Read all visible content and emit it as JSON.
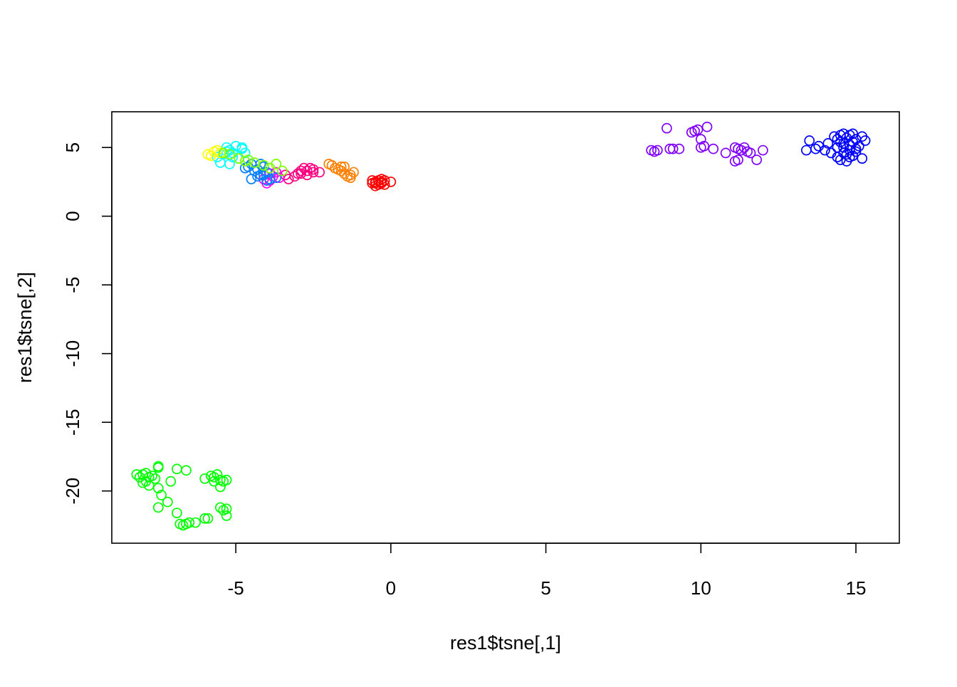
{
  "chart_data": {
    "type": "scatter",
    "title": "",
    "xlabel": "res1$tsne[,1]",
    "ylabel": "res1$tsne[,2]",
    "xlim": [
      -9.0,
      16.4
    ],
    "ylim": [
      -23.8,
      7.6
    ],
    "xticks": [
      -5,
      0,
      5,
      10,
      15
    ],
    "yticks": [
      -20,
      -15,
      -10,
      -5,
      0,
      5
    ],
    "grid": false,
    "legend": "none",
    "marker": "open-circle",
    "series": [
      {
        "color": "#FF0000",
        "points": [
          [
            -0.5,
            2.5
          ],
          [
            -0.3,
            2.4
          ],
          [
            -0.6,
            2.6
          ],
          [
            -0.4,
            2.3
          ],
          [
            -0.2,
            2.6
          ],
          [
            -0.5,
            2.4
          ],
          [
            -0.3,
            2.5
          ],
          [
            0.0,
            2.5
          ],
          [
            -0.6,
            2.4
          ],
          [
            -0.4,
            2.6
          ],
          [
            -0.2,
            2.3
          ],
          [
            -0.5,
            2.2
          ],
          [
            -0.3,
            2.7
          ]
        ]
      },
      {
        "color": "#FF8000",
        "points": [
          [
            -2.0,
            3.8
          ],
          [
            -1.8,
            3.5
          ],
          [
            -1.6,
            3.3
          ],
          [
            -1.5,
            3.6
          ],
          [
            -1.3,
            3.0
          ],
          [
            -1.2,
            3.2
          ],
          [
            -1.4,
            2.9
          ],
          [
            -1.7,
            3.4
          ],
          [
            -1.9,
            3.7
          ],
          [
            -1.5,
            3.1
          ],
          [
            -1.3,
            2.8
          ],
          [
            -1.6,
            3.6
          ]
        ]
      },
      {
        "color": "#FF0080",
        "points": [
          [
            -3.3,
            2.7
          ],
          [
            -3.1,
            2.9
          ],
          [
            -2.9,
            3.1
          ],
          [
            -2.7,
            3.3
          ],
          [
            -2.5,
            3.2
          ],
          [
            -2.3,
            3.2
          ],
          [
            -2.6,
            3.5
          ],
          [
            -2.8,
            3.5
          ],
          [
            -2.7,
            3.0
          ],
          [
            -2.9,
            3.3
          ],
          [
            -3.4,
            3.0
          ],
          [
            -3.0,
            3.1
          ],
          [
            -2.5,
            3.4
          ]
        ]
      },
      {
        "color": "#FF00FF",
        "points": [
          [
            -4.0,
            2.4
          ],
          [
            -3.8,
            2.9
          ],
          [
            -3.9,
            3.1
          ],
          [
            -3.6,
            2.8
          ],
          [
            -4.1,
            2.7
          ],
          [
            -3.7,
            3.2
          ],
          [
            -3.9,
            2.6
          ]
        ]
      },
      {
        "color": "#0080FF",
        "points": [
          [
            -4.6,
            3.6
          ],
          [
            -4.3,
            3.4
          ],
          [
            -4.2,
            3.0
          ],
          [
            -4.5,
            3.8
          ],
          [
            -4.0,
            3.2
          ],
          [
            -4.4,
            3.3
          ],
          [
            -4.1,
            3.6
          ],
          [
            -4.3,
            2.9
          ],
          [
            -4.5,
            2.7
          ],
          [
            -3.9,
            2.7
          ],
          [
            -4.7,
            3.5
          ],
          [
            -4.2,
            3.8
          ],
          [
            -3.7,
            2.8
          ],
          [
            -4.0,
            2.6
          ],
          [
            -4.1,
            3.0
          ]
        ]
      },
      {
        "color": "#00FFFF",
        "points": [
          [
            -5.6,
            4.3
          ],
          [
            -5.4,
            4.5
          ],
          [
            -5.3,
            5.0
          ],
          [
            -5.2,
            4.8
          ],
          [
            -5.0,
            5.1
          ],
          [
            -4.8,
            4.9
          ],
          [
            -4.7,
            4.6
          ],
          [
            -4.6,
            4.1
          ],
          [
            -5.1,
            4.3
          ],
          [
            -5.5,
            3.9
          ],
          [
            -5.2,
            3.8
          ],
          [
            -4.9,
            4.2
          ],
          [
            -5.3,
            4.7
          ],
          [
            -4.8,
            5.0
          ],
          [
            -5.1,
            4.6
          ]
        ]
      },
      {
        "color": "#FFFF00",
        "points": [
          [
            -5.9,
            4.5
          ],
          [
            -5.7,
            4.7
          ],
          [
            -5.6,
            4.8
          ],
          [
            -5.5,
            4.6
          ],
          [
            -5.8,
            4.4
          ]
        ]
      },
      {
        "color": "#80FF00",
        "points": [
          [
            -4.9,
            4.2
          ],
          [
            -4.7,
            4.0
          ],
          [
            -4.4,
            3.9
          ],
          [
            -4.1,
            3.7
          ],
          [
            -3.9,
            3.5
          ],
          [
            -3.7,
            3.8
          ],
          [
            -3.5,
            3.3
          ],
          [
            -4.6,
            4.1
          ],
          [
            -5.4,
            4.6
          ],
          [
            -5.2,
            4.5
          ]
        ]
      },
      {
        "color": "#00FF00",
        "points": [
          [
            -8.2,
            -18.8
          ],
          [
            -8.1,
            -19.0
          ],
          [
            -8.0,
            -18.8
          ],
          [
            -7.9,
            -19.3
          ],
          [
            -7.8,
            -19.0
          ],
          [
            -7.7,
            -18.9
          ],
          [
            -7.6,
            -19.1
          ],
          [
            -7.9,
            -18.7
          ],
          [
            -8.0,
            -19.4
          ],
          [
            -7.8,
            -19.6
          ],
          [
            -7.5,
            -18.2
          ],
          [
            -7.5,
            -18.3
          ],
          [
            -7.5,
            -19.8
          ],
          [
            -7.4,
            -20.3
          ],
          [
            -7.5,
            -21.2
          ],
          [
            -7.2,
            -20.8
          ],
          [
            -7.1,
            -19.3
          ],
          [
            -6.9,
            -18.4
          ],
          [
            -6.9,
            -21.6
          ],
          [
            -6.8,
            -22.4
          ],
          [
            -6.7,
            -22.5
          ],
          [
            -6.6,
            -22.4
          ],
          [
            -6.5,
            -22.3
          ],
          [
            -6.3,
            -22.3
          ],
          [
            -6.0,
            -22.0
          ],
          [
            -5.9,
            -22.0
          ],
          [
            -6.6,
            -18.5
          ],
          [
            -6.0,
            -19.1
          ],
          [
            -5.8,
            -18.9
          ],
          [
            -5.7,
            -19.0
          ],
          [
            -5.6,
            -18.8
          ],
          [
            -5.5,
            -19.2
          ],
          [
            -5.4,
            -19.3
          ],
          [
            -5.3,
            -19.2
          ],
          [
            -5.5,
            -19.7
          ],
          [
            -5.5,
            -21.2
          ],
          [
            -5.4,
            -21.4
          ],
          [
            -5.3,
            -21.3
          ],
          [
            -5.3,
            -21.8
          ],
          [
            -5.7,
            -19.3
          ]
        ]
      },
      {
        "color": "#8000FF",
        "points": [
          [
            8.4,
            4.8
          ],
          [
            8.5,
            4.7
          ],
          [
            8.6,
            4.8
          ],
          [
            8.9,
            6.4
          ],
          [
            9.0,
            4.9
          ],
          [
            9.1,
            4.9
          ],
          [
            9.3,
            4.9
          ],
          [
            9.7,
            6.1
          ],
          [
            9.8,
            6.2
          ],
          [
            9.9,
            6.3
          ],
          [
            10.0,
            5.6
          ],
          [
            10.0,
            5.0
          ],
          [
            10.1,
            5.1
          ],
          [
            10.2,
            6.5
          ],
          [
            10.4,
            4.9
          ],
          [
            10.8,
            4.6
          ],
          [
            11.1,
            4.0
          ],
          [
            11.1,
            5.0
          ],
          [
            11.2,
            4.9
          ],
          [
            11.2,
            4.1
          ],
          [
            11.3,
            4.8
          ],
          [
            11.4,
            5.0
          ],
          [
            11.5,
            4.7
          ],
          [
            11.6,
            4.6
          ],
          [
            11.8,
            4.1
          ],
          [
            12.0,
            4.8
          ]
        ]
      },
      {
        "color": "#0000FF",
        "points": [
          [
            13.4,
            4.8
          ],
          [
            13.5,
            5.5
          ],
          [
            13.7,
            4.9
          ],
          [
            13.8,
            5.1
          ],
          [
            14.0,
            4.8
          ],
          [
            14.1,
            5.3
          ],
          [
            14.2,
            4.6
          ],
          [
            14.3,
            5.8
          ],
          [
            14.4,
            5.0
          ],
          [
            14.4,
            4.3
          ],
          [
            14.5,
            5.9
          ],
          [
            14.5,
            4.1
          ],
          [
            14.6,
            6.0
          ],
          [
            14.6,
            4.6
          ],
          [
            14.6,
            5.3
          ],
          [
            14.7,
            4.0
          ],
          [
            14.7,
            5.7
          ],
          [
            14.8,
            4.8
          ],
          [
            14.8,
            5.9
          ],
          [
            14.9,
            4.4
          ],
          [
            14.9,
            5.4
          ],
          [
            15.0,
            4.7
          ],
          [
            15.0,
            5.6
          ],
          [
            15.1,
            5.1
          ],
          [
            15.2,
            4.2
          ],
          [
            15.2,
            5.8
          ],
          [
            15.3,
            5.5
          ],
          [
            14.8,
            4.3
          ],
          [
            14.6,
            5.0
          ],
          [
            14.9,
            6.0
          ],
          [
            14.4,
            5.6
          ],
          [
            14.7,
            4.5
          ],
          [
            15.0,
            4.9
          ],
          [
            14.5,
            5.4
          ],
          [
            14.8,
            5.2
          ]
        ]
      }
    ]
  }
}
